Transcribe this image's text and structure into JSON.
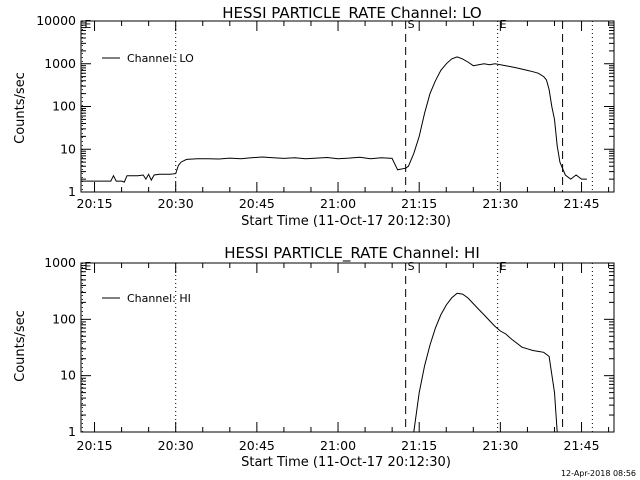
{
  "footer": {
    "timestamp": "12-Apr-2018 08:56"
  },
  "chart_data": [
    {
      "type": "line",
      "title": "HESSI PARTICLE_RATE Channel: LO",
      "xlabel": "Start Time (11-Oct-17 20:12:30)",
      "ylabel": "Counts/sec",
      "yscale": "log",
      "xlim": [
        "20:12:30",
        "21:51:00"
      ],
      "ylim": [
        1,
        10000
      ],
      "xtick_labels": [
        "20:15",
        "20:30",
        "20:45",
        "21:00",
        "21:15",
        "21:30",
        "21:45"
      ],
      "ytick_labels": [
        "1",
        "10",
        "100",
        "1000",
        "10000"
      ],
      "legend": {
        "position": "top-left",
        "entries": [
          "Channel: LO"
        ]
      },
      "vlines": [
        {
          "time": "20:12:45",
          "style": "dotted",
          "label": "E"
        },
        {
          "time": "20:30:00",
          "style": "dotted",
          "label": ""
        },
        {
          "time": "21:12:30",
          "style": "dashed",
          "label": "S"
        },
        {
          "time": "21:29:30",
          "style": "dotted",
          "label": "E"
        },
        {
          "time": "21:41:30",
          "style": "dashed",
          "label": ""
        },
        {
          "time": "21:47:00",
          "style": "dotted",
          "label": ""
        }
      ],
      "series": [
        {
          "name": "Channel: LO",
          "x": [
            "20:12:30",
            "20:15:00",
            "20:18:00",
            "20:18:30",
            "20:19:00",
            "20:20:00",
            "20:20:30",
            "20:21:00",
            "20:23:00",
            "20:24:00",
            "20:24:30",
            "20:25:00",
            "20:25:30",
            "20:26:00",
            "20:27:00",
            "20:29:00",
            "20:30:00",
            "20:30:30",
            "20:31:00",
            "20:32:00",
            "20:34:00",
            "20:36:00",
            "20:38:00",
            "20:40:00",
            "20:42:00",
            "20:44:00",
            "20:46:00",
            "20:48:00",
            "20:50:00",
            "20:52:00",
            "20:54:00",
            "20:56:00",
            "20:58:00",
            "21:00:00",
            "21:02:00",
            "21:04:00",
            "21:06:00",
            "21:08:00",
            "21:10:00",
            "21:11:00",
            "21:12:30",
            "21:13:00",
            "21:14:00",
            "21:15:00",
            "21:16:00",
            "21:17:00",
            "21:18:00",
            "21:19:00",
            "21:20:00",
            "21:21:00",
            "21:22:00",
            "21:23:00",
            "21:24:00",
            "21:25:00",
            "21:26:00",
            "21:27:00",
            "21:28:00",
            "21:29:00",
            "21:30:00",
            "21:31:00",
            "21:32:00",
            "21:33:00",
            "21:34:00",
            "21:35:00",
            "21:36:00",
            "21:37:00",
            "21:38:00",
            "21:38:30",
            "21:39:00",
            "21:39:30",
            "21:40:00",
            "21:40:30",
            "21:41:00",
            "21:42:00",
            "21:43:00",
            "21:44:00",
            "21:45:00",
            "21:46:00"
          ],
          "y": [
            1.8,
            1.8,
            1.8,
            2.4,
            1.8,
            1.8,
            1.7,
            2.4,
            2.4,
            2.5,
            2.0,
            2.6,
            1.9,
            2.5,
            2.6,
            2.6,
            2.7,
            4.2,
            5.0,
            5.8,
            6.0,
            6.0,
            5.9,
            6.2,
            6.0,
            6.3,
            6.6,
            6.3,
            6.1,
            6.3,
            6.0,
            6.2,
            6.4,
            6.0,
            6.2,
            6.5,
            6.0,
            6.3,
            6.1,
            3.3,
            3.6,
            4.0,
            8,
            20,
            70,
            200,
            400,
            700,
            1000,
            1300,
            1450,
            1300,
            1100,
            900,
            950,
            1000,
            950,
            1000,
            950,
            900,
            850,
            800,
            750,
            700,
            650,
            600,
            500,
            420,
            250,
            100,
            50,
            12,
            5,
            2.5,
            2.0,
            2.5,
            2.0,
            2.0
          ]
        }
      ]
    },
    {
      "type": "line",
      "title": "HESSI PARTICLE_RATE Channel: HI",
      "xlabel": "Start Time (11-Oct-17 20:12:30)",
      "ylabel": "Counts/sec",
      "yscale": "log",
      "xlim": [
        "20:12:30",
        "21:51:00"
      ],
      "ylim": [
        1,
        1000
      ],
      "xtick_labels": [
        "20:15",
        "20:30",
        "20:45",
        "21:00",
        "21:15",
        "21:30",
        "21:45"
      ],
      "ytick_labels": [
        "1",
        "10",
        "100",
        "1000"
      ],
      "legend": {
        "position": "top-left",
        "entries": [
          "Channel: HI"
        ]
      },
      "vlines": [
        {
          "time": "20:12:45",
          "style": "dotted",
          "label": "E"
        },
        {
          "time": "20:30:00",
          "style": "dotted",
          "label": ""
        },
        {
          "time": "21:12:30",
          "style": "dashed",
          "label": "S"
        },
        {
          "time": "21:29:30",
          "style": "dotted",
          "label": "E"
        },
        {
          "time": "21:41:30",
          "style": "dashed",
          "label": ""
        },
        {
          "time": "21:47:00",
          "style": "dotted",
          "label": ""
        }
      ],
      "series": [
        {
          "name": "Channel: HI",
          "x": [
            "21:14:00",
            "21:15:00",
            "21:16:00",
            "21:17:00",
            "21:18:00",
            "21:19:00",
            "21:20:00",
            "21:21:00",
            "21:22:00",
            "21:23:00",
            "21:24:00",
            "21:25:00",
            "21:26:00",
            "21:27:00",
            "21:28:00",
            "21:29:00",
            "21:30:00",
            "21:31:00",
            "21:32:00",
            "21:33:00",
            "21:34:00",
            "21:35:00",
            "21:36:00",
            "21:37:00",
            "21:38:00",
            "21:39:00",
            "21:40:00",
            "21:40:30"
          ],
          "y": [
            1.0,
            5,
            15,
            35,
            70,
            120,
            180,
            240,
            290,
            280,
            240,
            190,
            150,
            120,
            95,
            75,
            62,
            55,
            45,
            38,
            32,
            30,
            28,
            27,
            26,
            22,
            5,
            1.0
          ]
        }
      ]
    }
  ]
}
